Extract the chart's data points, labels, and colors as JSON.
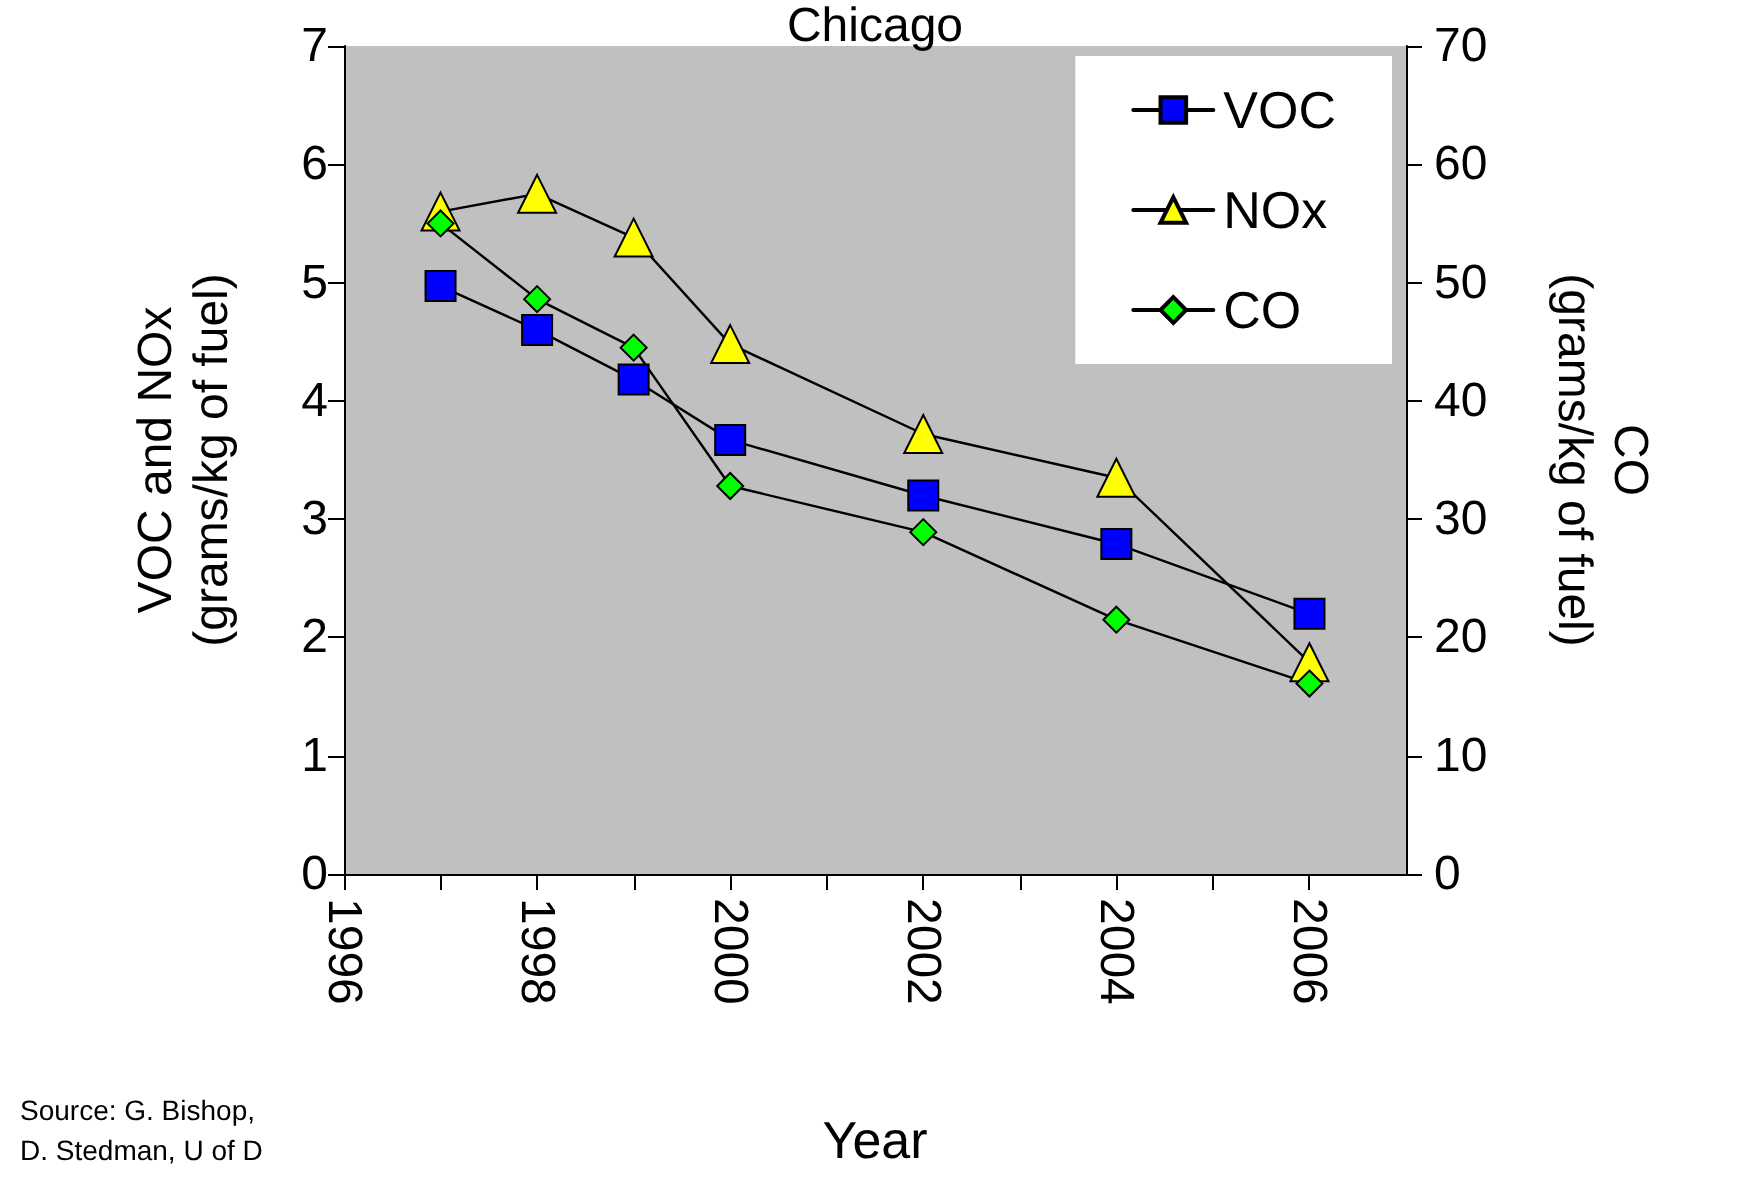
{
  "chart_data": {
    "type": "line",
    "title": "Chicago",
    "xlabel": "Year",
    "ylabel": "VOC and NOx\n(grams/kg of fuel)",
    "y2label": "CO\n(grams/kg of fuel)",
    "x": [
      1997,
      1998,
      1999,
      2000,
      2002,
      2004,
      2006
    ],
    "series": [
      {
        "name": "VOC",
        "color": "#0000ff",
        "marker": "square",
        "values": [
          4.97,
          4.6,
          4.18,
          3.67,
          3.2,
          2.79,
          2.2
        ]
      },
      {
        "name": "NOx",
        "color": "#ffff00",
        "marker": "triangle",
        "values": [
          5.6,
          5.75,
          5.38,
          4.48,
          3.72,
          3.35,
          1.79
        ]
      },
      {
        "name": "CO",
        "color": "#00ff00",
        "marker": "diamond",
        "axis": "y2",
        "values": [
          55,
          48.6,
          44.5,
          32.8,
          28.9,
          21.5,
          16.1
        ]
      }
    ],
    "xlim": [
      1996,
      2007
    ],
    "xticks": [
      1996,
      {
        "value": 1997,
        "label": null
      },
      1998,
      {
        "value": 1999,
        "label": null
      },
      2000,
      {
        "value": 2001,
        "label": null
      },
      2002,
      {
        "value": 2003,
        "label": null
      },
      2004,
      {
        "value": 2005,
        "label": null
      },
      2006
    ],
    "ylim": [
      0,
      7
    ],
    "yticks": [
      0,
      1,
      2,
      3,
      4,
      5,
      6,
      7
    ],
    "y2lim": [
      0,
      70
    ],
    "y2ticks": [
      0,
      10,
      20,
      30,
      40,
      50,
      60,
      70
    ],
    "grid": false,
    "legend": "top right",
    "line_style": "solid",
    "annotations": [
      "Source: G. Bishop,\nD. Stedman, U of D"
    ]
  }
}
